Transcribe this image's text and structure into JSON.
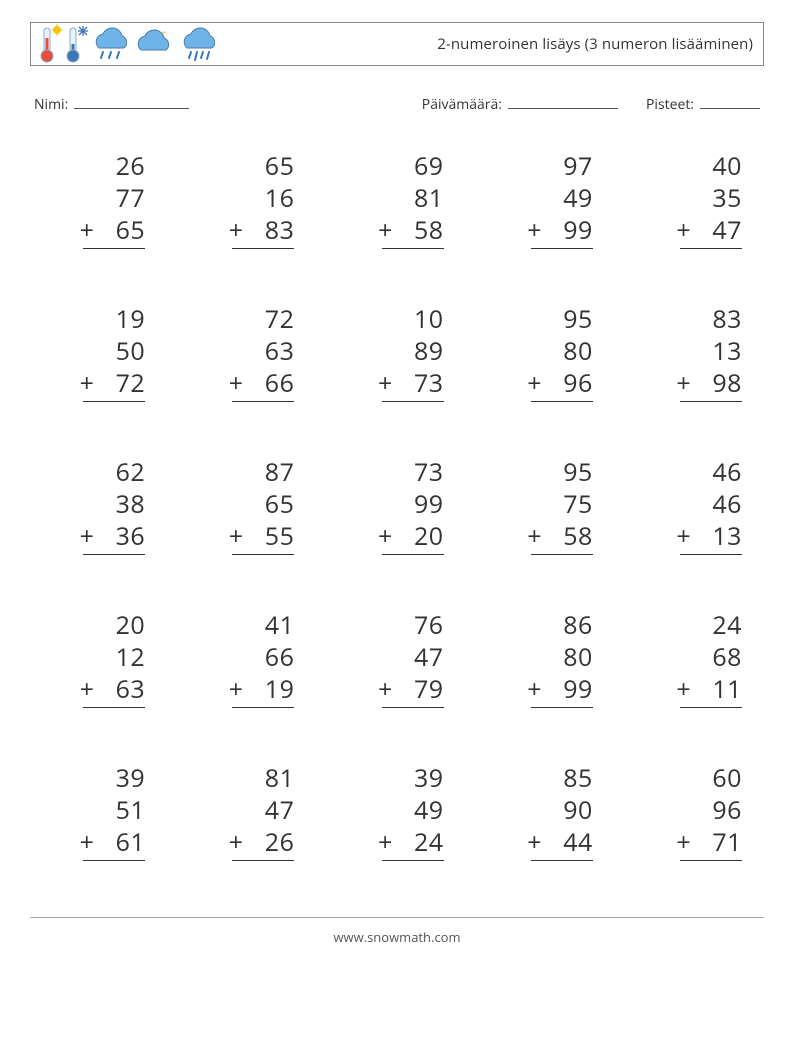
{
  "header": {
    "title": "2-numeroinen lisäys (3 numeron lisääminen)"
  },
  "info": {
    "name_label": "Nimi:",
    "date_label": "Päivämäärä:",
    "score_label": "Pisteet:"
  },
  "style": {
    "text_color": "#333333",
    "rule_color": "#333333",
    "font_size_problem": 25
  },
  "icons": {
    "thermo_hot_colors": {
      "bulb": "#e74c3c",
      "tube": "#e74c3c",
      "glass": "#8aa9c9",
      "sun": "#f1c40f"
    },
    "thermo_cold_colors": {
      "bulb": "#3b77b7",
      "tube": "#3b77b7",
      "glass": "#8aa9c9",
      "flake": "#3b77b7"
    },
    "cloud_colors": {
      "cloud": "#6fb4e8",
      "dark": "#4a7aa8",
      "rain": "#3b77b7",
      "moon": "#f3d36b"
    }
  },
  "problems": [
    [
      [
        26,
        77,
        65
      ],
      [
        65,
        16,
        83
      ],
      [
        69,
        81,
        58
      ],
      [
        97,
        49,
        99
      ],
      [
        40,
        35,
        47
      ]
    ],
    [
      [
        19,
        50,
        72
      ],
      [
        72,
        63,
        66
      ],
      [
        10,
        89,
        73
      ],
      [
        95,
        80,
        96
      ],
      [
        83,
        13,
        98
      ]
    ],
    [
      [
        62,
        38,
        36
      ],
      [
        87,
        65,
        55
      ],
      [
        73,
        99,
        20
      ],
      [
        95,
        75,
        58
      ],
      [
        46,
        46,
        13
      ]
    ],
    [
      [
        20,
        12,
        63
      ],
      [
        41,
        66,
        19
      ],
      [
        76,
        47,
        79
      ],
      [
        86,
        80,
        99
      ],
      [
        24,
        68,
        11
      ]
    ],
    [
      [
        39,
        51,
        61
      ],
      [
        81,
        47,
        26
      ],
      [
        39,
        49,
        24
      ],
      [
        85,
        90,
        44
      ],
      [
        60,
        96,
        71
      ]
    ]
  ],
  "footer": {
    "url": "www.snowmath.com"
  }
}
